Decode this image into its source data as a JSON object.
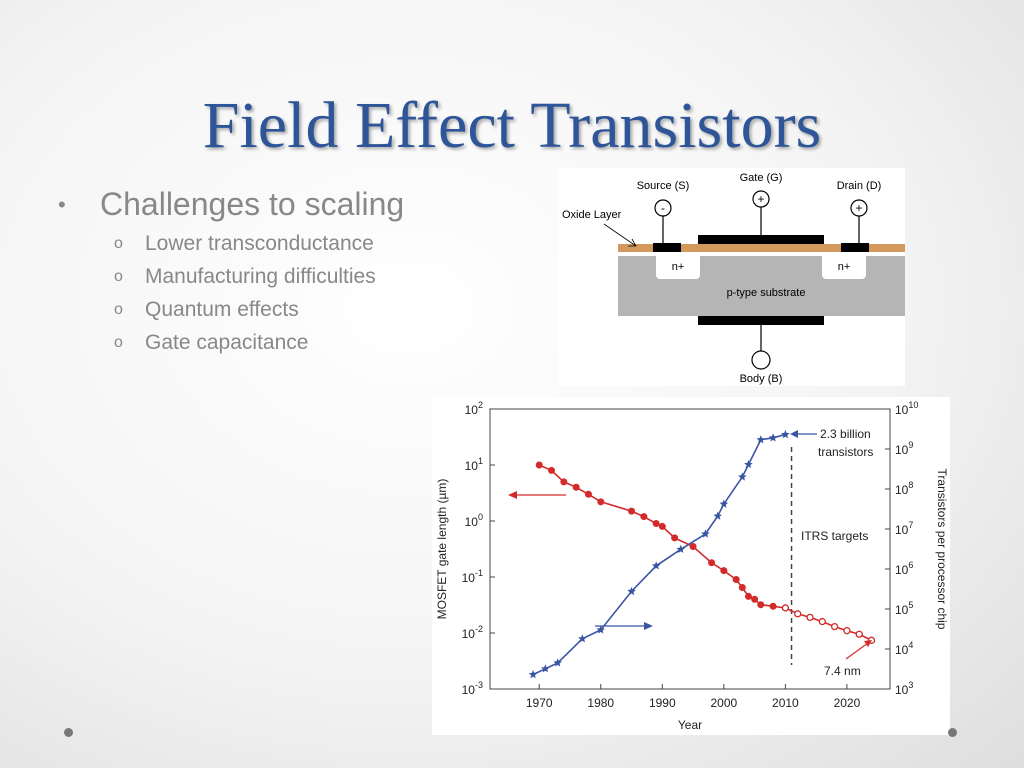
{
  "slide": {
    "title": "Field Effect Transistors",
    "bullet": "Challenges to scaling",
    "bullet_marker": "•",
    "sub_marker": "o",
    "sub_bullets": [
      "Lower transconductance",
      "Manufacturing difficulties",
      "Quantum effects",
      "Gate capacitance"
    ]
  },
  "diagram": {
    "source_label": "Source (S)",
    "gate_label": "Gate (G)",
    "drain_label": "Drain (D)",
    "oxide_label": "Oxide Layer",
    "n_plus_label": "n+",
    "substrate_label": "p-type substrate",
    "body_label": "Body (B)",
    "minus_sign": "-",
    "plus_sign": "+"
  },
  "chart_data": {
    "type": "line",
    "xlabel": "Year",
    "ylabel_left": "MOSFET gate length (µm)",
    "ylabel_right": "Transistors per processor chip",
    "x_ticks": [
      1970,
      1980,
      1990,
      2000,
      2010,
      2020
    ],
    "xlim": [
      1962,
      2027
    ],
    "y_left_log": true,
    "y_left_exp_range": [
      -3,
      2
    ],
    "y_left_tick_exps": [
      "2",
      "1",
      "0",
      "-1",
      "-2",
      "-3"
    ],
    "y_right_log": true,
    "y_right_exp_range": [
      3,
      10
    ],
    "y_right_tick_exps": [
      "10",
      "9",
      "8",
      "7",
      "6",
      "5",
      "4",
      "3"
    ],
    "tick_base": "10",
    "series": [
      {
        "axis": "left",
        "color": "#D42A2A",
        "marker": "dot",
        "points": [
          [
            1970,
            10
          ],
          [
            1972,
            8
          ],
          [
            1974,
            5
          ],
          [
            1976,
            4
          ],
          [
            1978,
            3
          ],
          [
            1980,
            2.2
          ],
          [
            1985,
            1.5
          ],
          [
            1987,
            1.2
          ],
          [
            1989,
            0.9
          ],
          [
            1990,
            0.8
          ],
          [
            1992,
            0.5
          ],
          [
            1995,
            0.35
          ],
          [
            1998,
            0.18
          ],
          [
            2000,
            0.13
          ],
          [
            2002,
            0.09
          ],
          [
            2003,
            0.065
          ],
          [
            2004,
            0.045
          ],
          [
            2005,
            0.04
          ],
          [
            2006,
            0.032
          ],
          [
            2008,
            0.03
          ],
          [
            2010,
            0.028
          ]
        ]
      },
      {
        "axis": "left",
        "color": "#D42A2A",
        "marker": "open-dot",
        "points": [
          [
            2010,
            0.028
          ],
          [
            2012,
            0.022
          ],
          [
            2014,
            0.019
          ],
          [
            2016,
            0.016
          ],
          [
            2018,
            0.013
          ],
          [
            2020,
            0.011
          ],
          [
            2022,
            0.0095
          ],
          [
            2024,
            0.0074
          ]
        ]
      },
      {
        "axis": "right",
        "color": "#3A55A4",
        "marker": "star",
        "points": [
          [
            1969,
            2300
          ],
          [
            1971,
            3200
          ],
          [
            1973,
            4500
          ],
          [
            1977,
            18000
          ],
          [
            1980,
            30000
          ],
          [
            1985,
            275000
          ],
          [
            1989,
            1200000
          ],
          [
            1993,
            3100000
          ],
          [
            1997,
            7500000
          ],
          [
            1999,
            21000000
          ],
          [
            2000,
            42000000
          ],
          [
            2003,
            200000000
          ],
          [
            2004,
            410000000
          ],
          [
            2006,
            1700000000
          ],
          [
            2008,
            1900000000
          ],
          [
            2010,
            2300000000
          ]
        ]
      }
    ],
    "annotations": {
      "billion_label": "2.3 billion",
      "transistors_label": "transistors",
      "itrs_label": "ITRS targets",
      "nm_label": "7.4 nm"
    }
  }
}
